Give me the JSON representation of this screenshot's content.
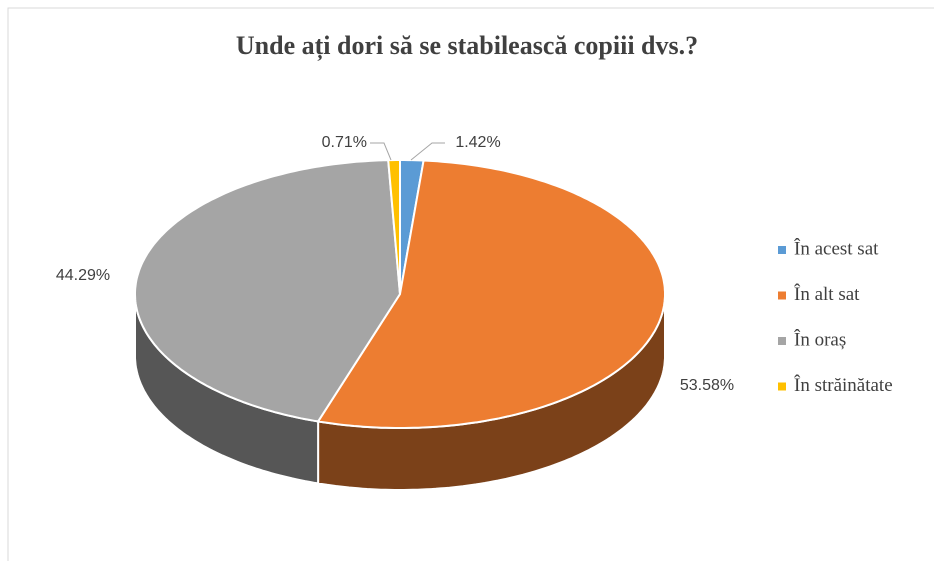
{
  "chart_data": {
    "type": "pie",
    "title": "Unde ați dori să se stabilească copiii dvs.?",
    "categories": [
      "În acest sat",
      "În alt sat",
      "În oraș",
      "În străinătate"
    ],
    "values": [
      1.42,
      53.58,
      44.29,
      0.71
    ],
    "value_labels": [
      "1.42%",
      "53.58%",
      "44.29%",
      "0.71%"
    ],
    "colors": [
      "#5b9bd5",
      "#ed7d31",
      "#a5a5a5",
      "#ffc000"
    ],
    "legend": "right"
  }
}
